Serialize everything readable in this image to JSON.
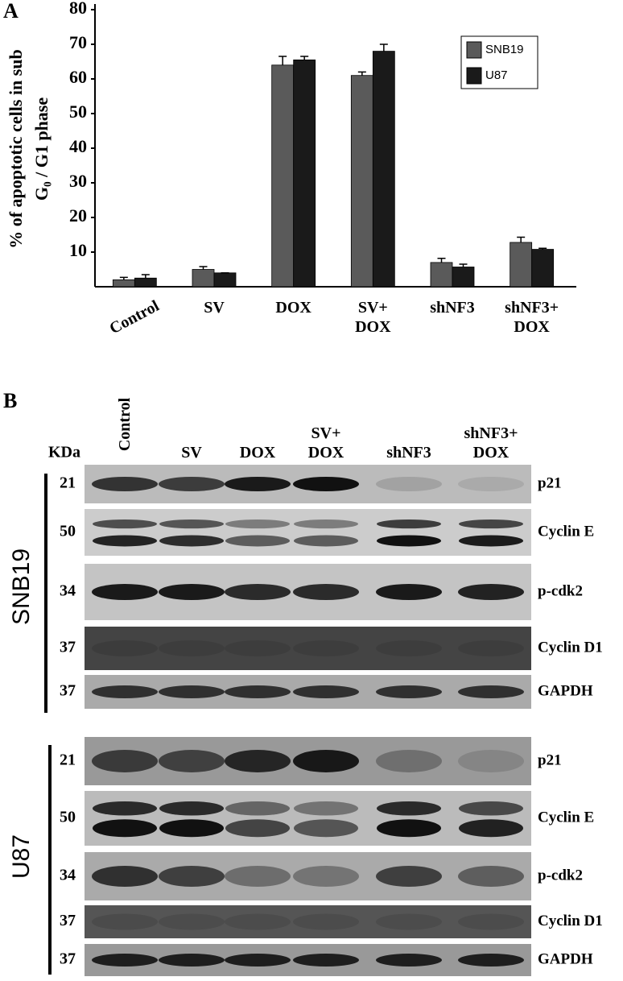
{
  "chart_data": {
    "type": "bar",
    "panel_label": "A",
    "ylabel": [
      "% of apoptotic cells in sub",
      "G₀ / G1 phase"
    ],
    "categories": [
      "Control",
      "SV",
      "DOX",
      "SV+\nDOX",
      "shNF3",
      "shNF3+\nDOX"
    ],
    "series": [
      {
        "name": "SNB19",
        "color": "#5a5a5a",
        "values": [
          2,
          5,
          64,
          61,
          7,
          12.8
        ],
        "errors": [
          0.7,
          0.8,
          2.5,
          1,
          1.2,
          1.5
        ]
      },
      {
        "name": "U87",
        "color": "#1a1a1a",
        "values": [
          2.5,
          4,
          65.5,
          68,
          5.7,
          10.8
        ],
        "errors": [
          1,
          0,
          1,
          2,
          0.8,
          0.3
        ]
      }
    ],
    "ylim": [
      0,
      80
    ],
    "yticks": [
      10,
      20,
      30,
      40,
      50,
      60,
      70,
      80
    ],
    "legend": "upper right"
  },
  "blot": {
    "panel_label": "B",
    "kda_header": "KDa",
    "lanes": [
      "Control",
      "SV",
      "DOX",
      "SV+\nDOX",
      "shNF3",
      "shNF3+\nDOX"
    ],
    "groups": [
      {
        "name": "SNB19",
        "rows": [
          {
            "kda": 21,
            "protein": "p21"
          },
          {
            "kda": 50,
            "protein": "Cyclin E"
          },
          {
            "kda": 34,
            "protein": "p-cdk2"
          },
          {
            "kda": 37,
            "protein": "Cyclin D1"
          },
          {
            "kda": 37,
            "protein": "GAPDH"
          }
        ]
      },
      {
        "name": "U87",
        "rows": [
          {
            "kda": 21,
            "protein": "p21"
          },
          {
            "kda": 50,
            "protein": "Cyclin E"
          },
          {
            "kda": 34,
            "protein": "p-cdk2"
          },
          {
            "kda": 37,
            "protein": "Cyclin D1"
          },
          {
            "kda": 37,
            "protein": "GAPDH"
          }
        ]
      }
    ]
  }
}
